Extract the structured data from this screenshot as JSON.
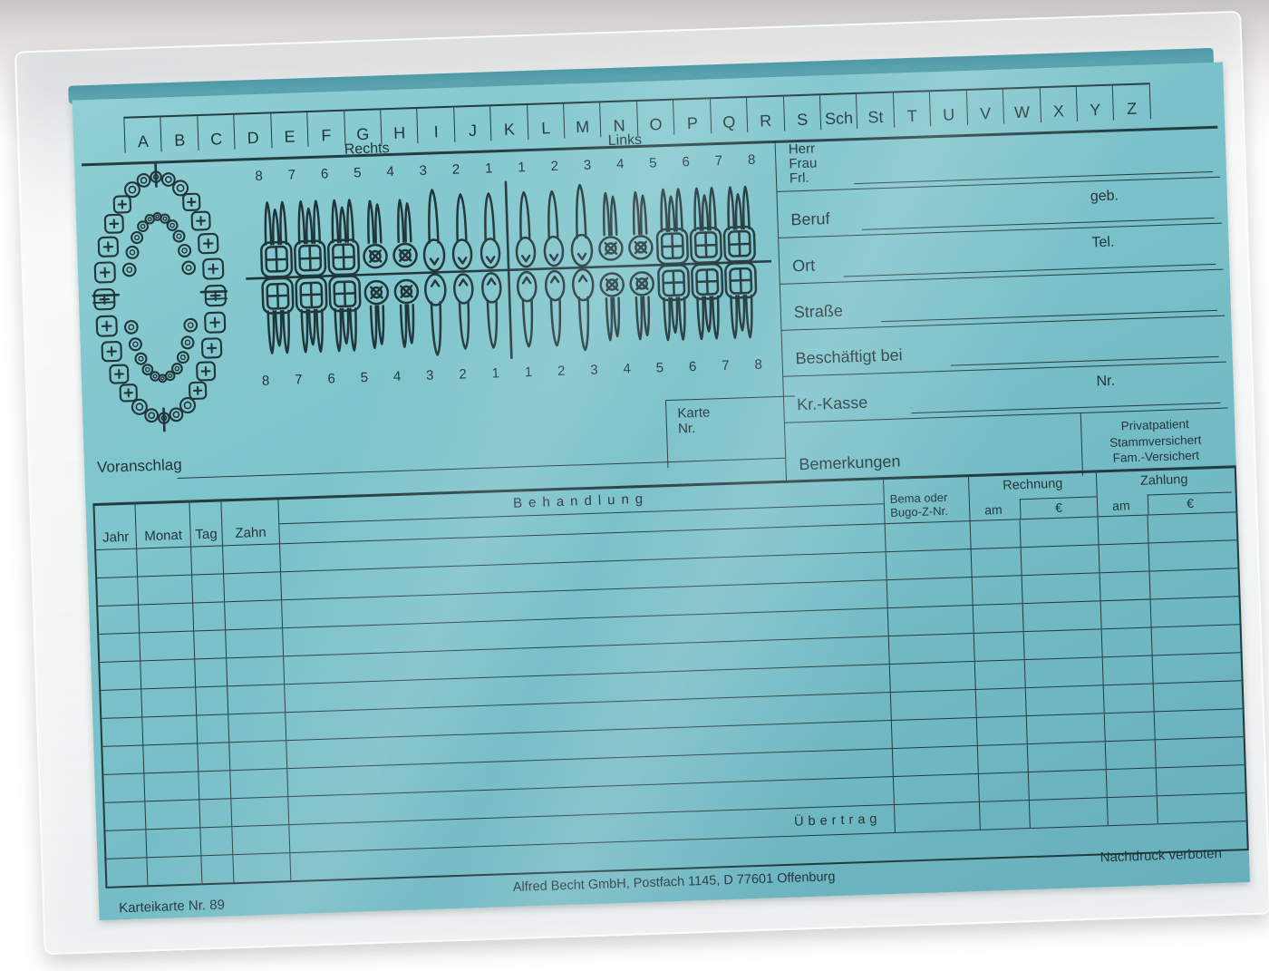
{
  "card": {
    "alphabet_tabs": [
      "A",
      "B",
      "C",
      "D",
      "E",
      "F",
      "G",
      "H",
      "I",
      "J",
      "K",
      "L",
      "M",
      "N",
      "O",
      "P",
      "Q",
      "R",
      "S",
      "Sch",
      "St",
      "T",
      "U",
      "V",
      "W",
      "X",
      "Y",
      "Z"
    ],
    "dental_chart": {
      "right_label": "Rechts",
      "left_label": "Links",
      "upper_tooth_numbers": [
        "8",
        "7",
        "6",
        "5",
        "4",
        "3",
        "2",
        "1",
        "1",
        "2",
        "3",
        "4",
        "5",
        "6",
        "7",
        "8"
      ],
      "lower_tooth_numbers": [
        "8",
        "7",
        "6",
        "5",
        "4",
        "3",
        "2",
        "1",
        "1",
        "2",
        "3",
        "4",
        "5",
        "6",
        "7",
        "8"
      ]
    },
    "patient": {
      "salutations": [
        "Herr",
        "Frau",
        "Frl."
      ],
      "occupation_label": "Beruf",
      "birth_label": "geb.",
      "city_label": "Ort",
      "phone_label": "Tel.",
      "street_label": "Straße",
      "employer_label": "Beschäftigt bei",
      "insurer_label": "Kr.-Kasse",
      "insurer_no_label": "Nr.",
      "remarks_label": "Bemerkungen",
      "insurance_types": [
        "Privatpatient",
        "Stammversichert",
        "Fam.-Versichert"
      ]
    },
    "card_no_label_line1": "Karte",
    "card_no_label_line2": "Nr.",
    "estimate_label": "Voranschlag",
    "table": {
      "date_columns": [
        "Jahr",
        "Monat",
        "Tag",
        "Zahn"
      ],
      "treatment_column": "Behandlung",
      "fee_no_line1": "Bema oder",
      "fee_no_line2": "Bugo-Z-Nr.",
      "invoice_label": "Rechnung",
      "payment_label": "Zahlung",
      "date_sub": "am",
      "euro_sub": "€",
      "carryover_label": "Übertrag",
      "empty_rows": 10
    },
    "footer": {
      "reprint_notice": "Nachdruck verboten",
      "publisher": "Alfred Becht GmbH, Postfach 1145, D 77601 Offenburg",
      "card_title": "Karteikarte Nr. 89"
    }
  }
}
